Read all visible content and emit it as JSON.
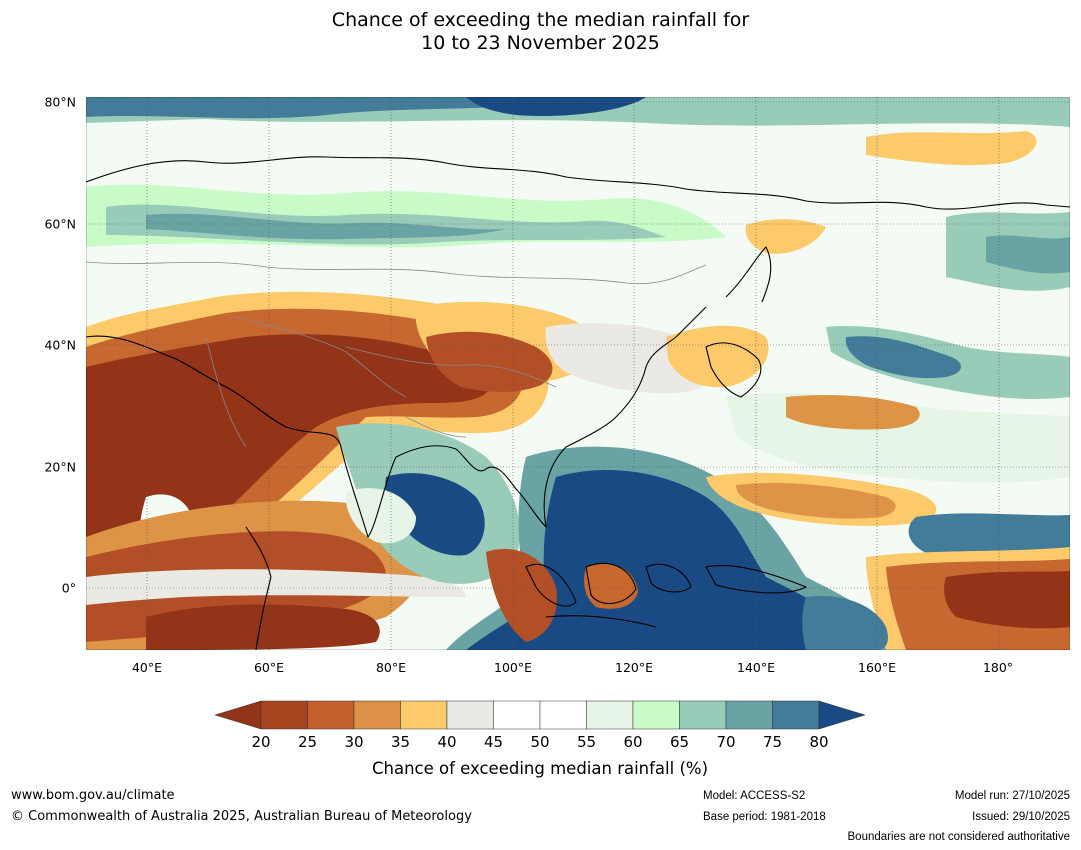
{
  "title": {
    "line1": "Chance of exceeding the median rainfall for",
    "line2": "10 to 23 November 2025"
  },
  "map": {
    "lat_labels": [
      "80°N",
      "60°N",
      "40°N",
      "20°N",
      "0°"
    ],
    "lon_labels": [
      "40°E",
      "60°E",
      "80°E",
      "100°E",
      "120°E",
      "140°E",
      "160°E",
      "180°"
    ],
    "colors": {
      "ocean_dry_extreme": "#933419",
      "dry_strong": "#b34f27",
      "dry": "#c6682f",
      "dry_moderate": "#de9446",
      "dry_slight": "#fcca6b",
      "neutral": "#ebe9e4",
      "wet_slight": "#e6f5e6",
      "wet": "#c8fbc8",
      "wet_moderate": "#98ccb8",
      "wet_strong": "#6aa3a3",
      "wet_very": "#437c98",
      "wet_extreme": "#1a4a84"
    }
  },
  "colorbar": {
    "ticks": [
      "20",
      "25",
      "30",
      "35",
      "40",
      "45",
      "50",
      "55",
      "60",
      "65",
      "70",
      "75",
      "80"
    ],
    "segment_colors": [
      "#a4451f",
      "#c45e2c",
      "#dd9146",
      "#fcca6b",
      "#ebe9e4",
      "#ffffff",
      "#ffffff",
      "#e6f5e6",
      "#c8fbc8",
      "#98ccb8",
      "#6aa3a3",
      "#437c98"
    ],
    "under_color": "#933419",
    "over_color": "#1a4a84",
    "label": "Chance of exceeding median rainfall (%)"
  },
  "footer": {
    "website": "www.bom.gov.au/climate",
    "copyright": "© Commonwealth of Australia 2025, Australian Bureau of Meteorology",
    "model": "Model: ACCESS-S2",
    "base_period": "Base period: 1981-2018",
    "model_run": "Model run: 27/10/2025",
    "issued": "Issued: 29/10/2025",
    "disclaimer": "Boundaries are not considered authoritative"
  }
}
